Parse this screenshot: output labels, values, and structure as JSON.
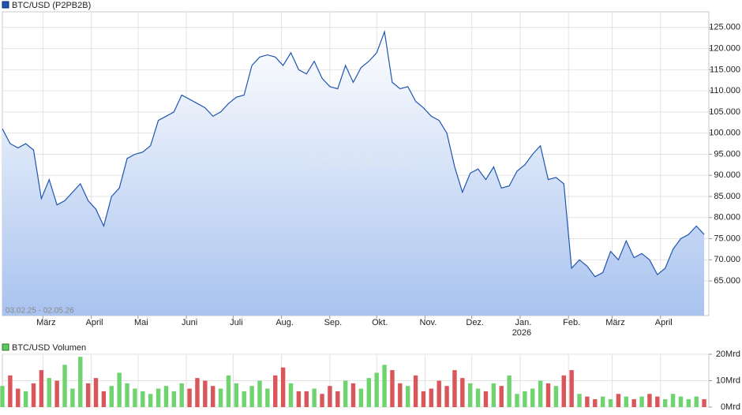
{
  "chart_data": [
    {
      "type": "line",
      "title": "BTC/USD (P2PB2B)",
      "subtitle": "03.02.25 - 02.05.26",
      "watermark": "ARIVA.DE",
      "color": "#1f55b0",
      "fill_top": "#ffffff",
      "fill_bottom": "#a9c3ef",
      "values": [
        101000,
        97500,
        96500,
        97500,
        96000,
        84500,
        89000,
        83000,
        84000,
        86000,
        88000,
        84000,
        82000,
        78000,
        85000,
        87000,
        94000,
        95000,
        95500,
        97000,
        103000,
        104000,
        105000,
        109000,
        108000,
        107000,
        106000,
        104000,
        105000,
        107000,
        108500,
        109000,
        116000,
        118000,
        118500,
        118000,
        116000,
        119000,
        115000,
        114000,
        117000,
        113000,
        111000,
        110500,
        116000,
        112000,
        115500,
        117000,
        119000,
        124000,
        112000,
        110500,
        111000,
        107500,
        106000,
        104000,
        103000,
        100000,
        92000,
        86000,
        90500,
        91500,
        89000,
        92000,
        87000,
        87500,
        91000,
        92500,
        95000,
        97000,
        89000,
        89500,
        88000,
        68000,
        70000,
        68500,
        66000,
        67000,
        72000,
        70000,
        74500,
        70500,
        71500,
        70000,
        66500,
        68000,
        72500,
        75000,
        76000,
        78000,
        76000
      ],
      "xlim": [
        0,
        90.6
      ],
      "xticks": [
        {
          "value": 5.2,
          "label": "März"
        },
        {
          "value": 11.4,
          "label": "April"
        },
        {
          "value": 17.4,
          "label": "Mai"
        },
        {
          "value": 23.6,
          "label": "Juni"
        },
        {
          "value": 29.6,
          "label": "Juli"
        },
        {
          "value": 35.8,
          "label": "Aug."
        },
        {
          "value": 42,
          "label": "Sep."
        },
        {
          "value": 48,
          "label": "Okt."
        },
        {
          "value": 54.2,
          "label": "Nov."
        },
        {
          "value": 60.2,
          "label": "Dez."
        },
        {
          "value": 66.4,
          "label": "Jan."
        },
        {
          "value": 72.6,
          "label": "Feb."
        },
        {
          "value": 78.2,
          "label": "März"
        },
        {
          "value": 84.4,
          "label": "April"
        }
      ],
      "year_label": "2026",
      "ylim": [
        56800,
        128700
      ],
      "yticks": [
        {
          "value": 65000,
          "label": "65.000"
        },
        {
          "value": 70000,
          "label": "70.000"
        },
        {
          "value": 75000,
          "label": "75.000"
        },
        {
          "value": 80000,
          "label": "80.000"
        },
        {
          "value": 85000,
          "label": "85.000"
        },
        {
          "value": 90000,
          "label": "90.000"
        },
        {
          "value": 95000,
          "label": "95.000"
        },
        {
          "value": 100000,
          "label": "100.000"
        },
        {
          "value": 105000,
          "label": "105.000"
        },
        {
          "value": 110000,
          "label": "110.000"
        },
        {
          "value": 115000,
          "label": "115.000"
        },
        {
          "value": 120000,
          "label": "120.000"
        },
        {
          "value": 125000,
          "label": "125.000"
        }
      ],
      "grid": true
    },
    {
      "type": "bar",
      "title": "BTC/USD Volumen",
      "color": "#5cc85c",
      "up_color": "#6fd36f",
      "down_color": "#d9575a",
      "values": [
        8,
        12,
        7,
        6,
        9,
        14,
        11,
        10,
        16,
        7,
        19,
        9,
        11,
        6,
        8,
        13,
        9,
        7,
        6,
        5,
        7,
        8,
        6,
        9,
        7,
        11,
        10,
        8,
        7,
        12,
        9,
        6,
        8,
        10,
        7,
        12,
        15,
        9,
        6,
        6,
        7,
        5,
        8,
        6,
        10,
        9,
        7,
        11,
        13,
        16,
        14,
        9,
        8,
        12,
        6,
        7,
        10,
        8,
        14,
        11,
        9,
        7,
        6,
        9,
        8,
        12,
        5,
        6,
        7,
        10,
        9,
        8,
        12,
        14,
        5,
        4,
        3,
        4,
        3,
        5,
        4,
        3,
        4,
        5,
        4,
        3,
        5,
        4,
        3,
        4,
        3
      ],
      "ylim": [
        0,
        20
      ],
      "yticks": [
        {
          "value": 0,
          "label": "0Mrd"
        },
        {
          "value": 10,
          "label": "10Mrd"
        },
        {
          "value": 20,
          "label": "20Mrd"
        }
      ],
      "grid": true
    }
  ]
}
